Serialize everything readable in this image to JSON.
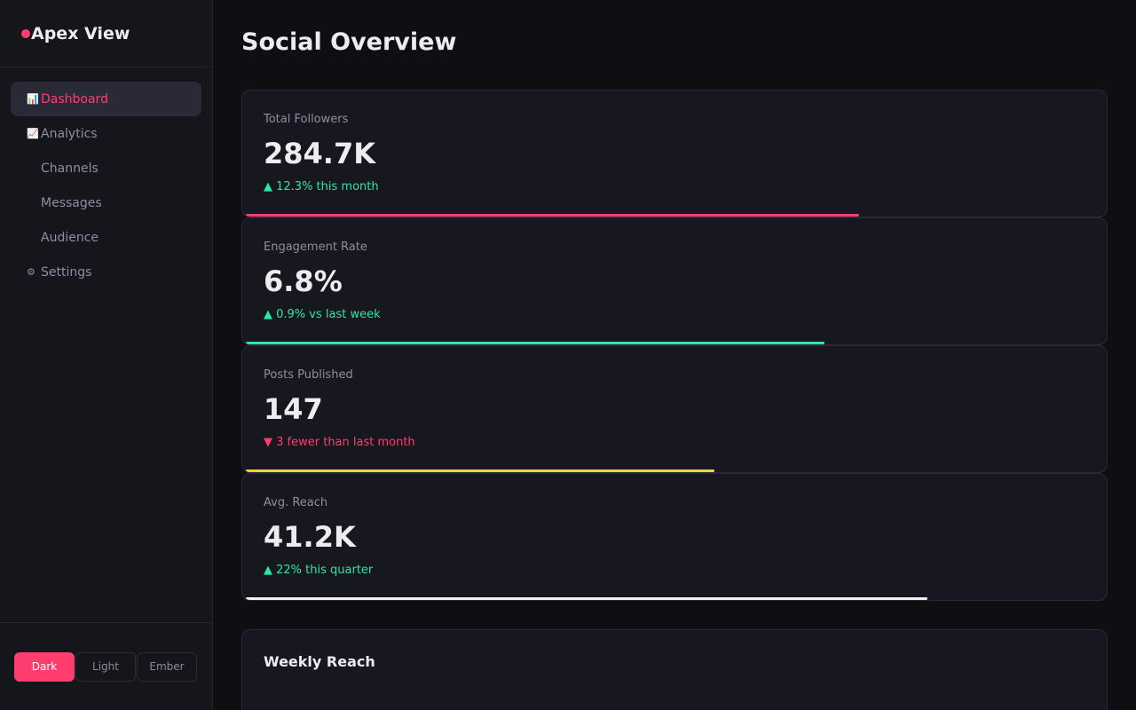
{
  "app": {
    "name": "Apex View",
    "brand_color": "#ff3d6e"
  },
  "sidebar": {
    "items": [
      {
        "label": "Dashboard",
        "icon": "bar-chart-icon",
        "glyph": "📊",
        "active": true
      },
      {
        "label": "Analytics",
        "icon": "line-chart-icon",
        "glyph": "📈",
        "active": false
      },
      {
        "label": "Channels",
        "icon": "",
        "glyph": "",
        "active": false
      },
      {
        "label": "Messages",
        "icon": "",
        "glyph": "",
        "active": false
      },
      {
        "label": "Audience",
        "icon": "",
        "glyph": "",
        "active": false
      },
      {
        "label": "Settings",
        "icon": "gear-icon",
        "glyph": "⚙",
        "active": false
      }
    ],
    "themes": [
      {
        "label": "Dark",
        "selected": true
      },
      {
        "label": "Light",
        "selected": false
      },
      {
        "label": "Ember",
        "selected": false
      }
    ]
  },
  "main": {
    "title": "Social Overview",
    "stats": [
      {
        "label": "Total Followers",
        "value": "284.7K",
        "delta": "▲ 12.3% this month",
        "trend": "up",
        "progress": 0.715,
        "bar_color": "#ff3d6e"
      },
      {
        "label": "Engagement Rate",
        "value": "6.8%",
        "delta": "▲ 0.9% vs last week",
        "trend": "up",
        "progress": 0.675,
        "bar_color": "#2ee6a6"
      },
      {
        "label": "Posts Published",
        "value": "147",
        "delta": "▼ 3 fewer than last month",
        "trend": "down",
        "progress": 0.547,
        "bar_color": "#ffd23d"
      },
      {
        "label": "Avg. Reach",
        "value": "41.2K",
        "delta": "▲ 22% this quarter",
        "trend": "up",
        "progress": 0.795,
        "bar_color": "#f0f0f5"
      }
    ],
    "chart": {
      "title": "Weekly Reach"
    }
  }
}
